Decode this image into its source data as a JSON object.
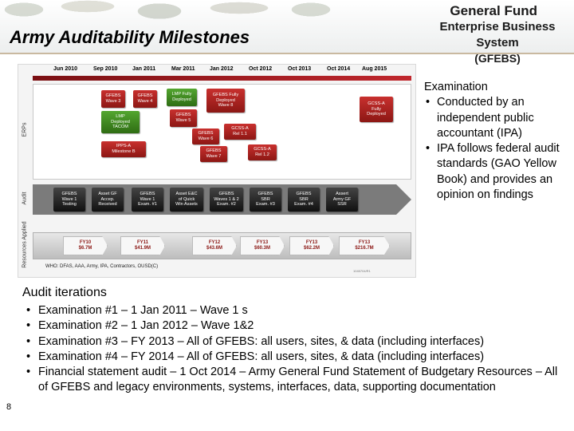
{
  "slide": {
    "title": "Army Auditability Milestones",
    "page_number": "8"
  },
  "logo": {
    "line1": "General Fund",
    "line2": "Enterprise Business System",
    "line3": "(GFEBS)"
  },
  "roadmap": {
    "timeline": [
      "Jun 2010",
      "Sep 2010",
      "Jan 2011",
      "Mar 2011",
      "Jan 2012",
      "Oct 2012",
      "Oct 2013",
      "Oct 2014",
      "Aug 2015"
    ],
    "lanes": {
      "erps": "ERPs",
      "audit": "Audit",
      "resources": "Resources Applied"
    },
    "erp_boxes": [
      "GFEBS\nWave 3",
      "GFEBS\nWave 4",
      "LMP Fully\nDeployed",
      "GFEBS Fully\nDeployed\nWave 8",
      "LMP\nDeployed\nTACOM",
      "GFEBS\nWave 5",
      "IPPS-A\nMilestone B",
      "GFEBS\nWave 6",
      "GCSS-A\nRel 1.1",
      "GFEBS\nWave 7",
      "GCSS-A\nRel 1.2",
      "GCSS-A\nFully\nDeployed"
    ],
    "audit_boxes": [
      "GFEBS\nWave 1\nTesting",
      "Asset GF\nAccep.\nReceived",
      "GFEBS\nWave 1\nExam. #1",
      "Asset E&C\nof Quick\nWin Assets",
      "GFEBS\nWaves 1 & 2\nExam. #2",
      "GFEBS\nSBR\nExam. #3",
      "GFEBS\nSBR\nExam. #4",
      "Assert\nArmy GF\nSSR"
    ],
    "resources": [
      "FY10\n$6.7M",
      "FY11\n$41.9M",
      "FY12\n$43.6M",
      "FY13\n$60.3M",
      "FY13\n$62.2M",
      "FY13\n$216.7M"
    ],
    "who": "WHO: DFAS, AAA, Army, IPA, Contractors, OUSD(C)",
    "figure_id": "1045704/R1"
  },
  "examination": {
    "heading": "Examination",
    "bullets": [
      "Conducted by an independent public accountant (IPA)",
      "IPA follows federal audit standards (GAO Yellow Book) and provides an opinion on findings"
    ]
  },
  "audit_iterations": {
    "heading": "Audit iterations",
    "bullets": [
      "Examination #1 – 1 Jan 2011 – Wave 1 s",
      "Examination #2 – 1 Jan 2012 – Wave 1&2",
      "Examination #3 – FY 2013 – All of GFEBS: all users, sites, & data (including interfaces)",
      "Examination #4 – FY 2014 – All of GFEBS: all users, sites, & data (including interfaces)",
      "Financial statement audit – 1 Oct 2014 – Army General Fund Statement of Budgetary Resources – All of GFEBS and legacy environments, systems, interfaces, data, supporting documentation"
    ]
  }
}
